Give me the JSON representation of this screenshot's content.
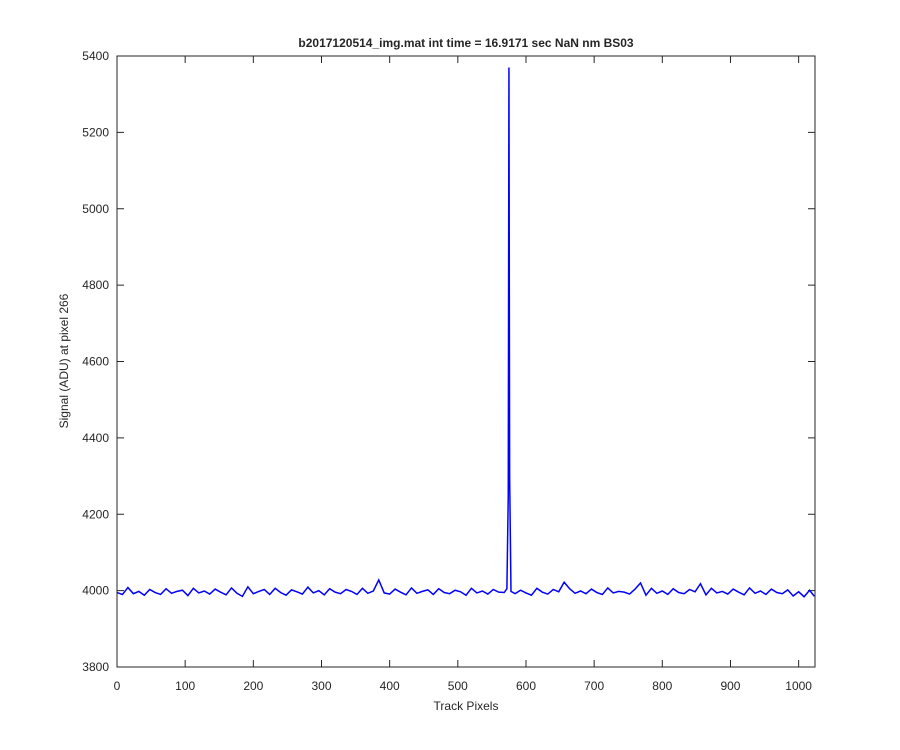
{
  "chart_data": {
    "type": "line",
    "title": "b2017120514_img.mat int time = 16.9171 sec  NaN nm BS03",
    "xlabel": "Track Pixels",
    "ylabel": "Signal (ADU) at pixel 266",
    "color": "#0000ff",
    "x": [
      0,
      8,
      16,
      24,
      32,
      40,
      48,
      56,
      64,
      72,
      80,
      88,
      96,
      104,
      112,
      120,
      128,
      136,
      144,
      152,
      160,
      168,
      176,
      184,
      192,
      200,
      208,
      216,
      224,
      232,
      240,
      248,
      256,
      264,
      272,
      280,
      288,
      296,
      304,
      312,
      320,
      328,
      336,
      344,
      352,
      360,
      368,
      376,
      384,
      392,
      400,
      408,
      416,
      424,
      432,
      440,
      448,
      456,
      464,
      472,
      480,
      488,
      496,
      504,
      512,
      520,
      528,
      536,
      544,
      552,
      560,
      568,
      572,
      574,
      575,
      576,
      578,
      584,
      592,
      600,
      608,
      616,
      624,
      632,
      640,
      648,
      656,
      664,
      672,
      680,
      688,
      696,
      704,
      712,
      720,
      728,
      736,
      744,
      752,
      760,
      768,
      776,
      784,
      792,
      800,
      808,
      816,
      824,
      832,
      840,
      848,
      856,
      864,
      872,
      880,
      888,
      896,
      904,
      912,
      920,
      928,
      936,
      944,
      952,
      960,
      968,
      976,
      984,
      992,
      1000,
      1008,
      1016,
      1023
    ],
    "values": [
      3995,
      3990,
      4008,
      3992,
      3998,
      3988,
      4003,
      3995,
      3990,
      4005,
      3993,
      3998,
      4001,
      3987,
      4006,
      3994,
      3999,
      3991,
      4004,
      3996,
      3989,
      4007,
      3993,
      3985,
      4010,
      3992,
      3998,
      4003,
      3990,
      4006,
      3995,
      3988,
      4002,
      3997,
      3991,
      4009,
      3994,
      4000,
      3989,
      4005,
      3996,
      3992,
      4003,
      3998,
      3990,
      4006,
      3993,
      3999,
      4028,
      3994,
      3991,
      4004,
      3996,
      3989,
      4007,
      3993,
      3998,
      4002,
      3990,
      4005,
      3995,
      3992,
      4001,
      3997,
      3988,
      4006,
      3994,
      3999,
      3991,
      4003,
      3996,
      3995,
      4005,
      4250,
      5370,
      4300,
      3998,
      3992,
      4001,
      3994,
      3988,
      4006,
      3996,
      3991,
      4003,
      3997,
      4022,
      4005,
      3993,
      3999,
      3992,
      4004,
      3995,
      3990,
      4007,
      3994,
      3998,
      3996,
      3991,
      4004,
      4020,
      3988,
      4006,
      3993,
      3999,
      3990,
      4005,
      3995,
      3992,
      4003,
      3997,
      4018,
      3989,
      4006,
      3994,
      3998,
      3991,
      4004,
      3996,
      3989,
      4007,
      3993,
      3999,
      3990,
      4004,
      3995,
      3992,
      4002,
      3986,
      3997,
      3984,
      4001,
      3985
    ],
    "xlim": [
      0,
      1024
    ],
    "ylim": [
      3800,
      5400
    ],
    "xticks": [
      0,
      100,
      200,
      300,
      400,
      500,
      600,
      700,
      800,
      900,
      1000
    ],
    "yticks": [
      3800,
      4000,
      4200,
      4400,
      4600,
      4800,
      5000,
      5200,
      5400
    ]
  }
}
